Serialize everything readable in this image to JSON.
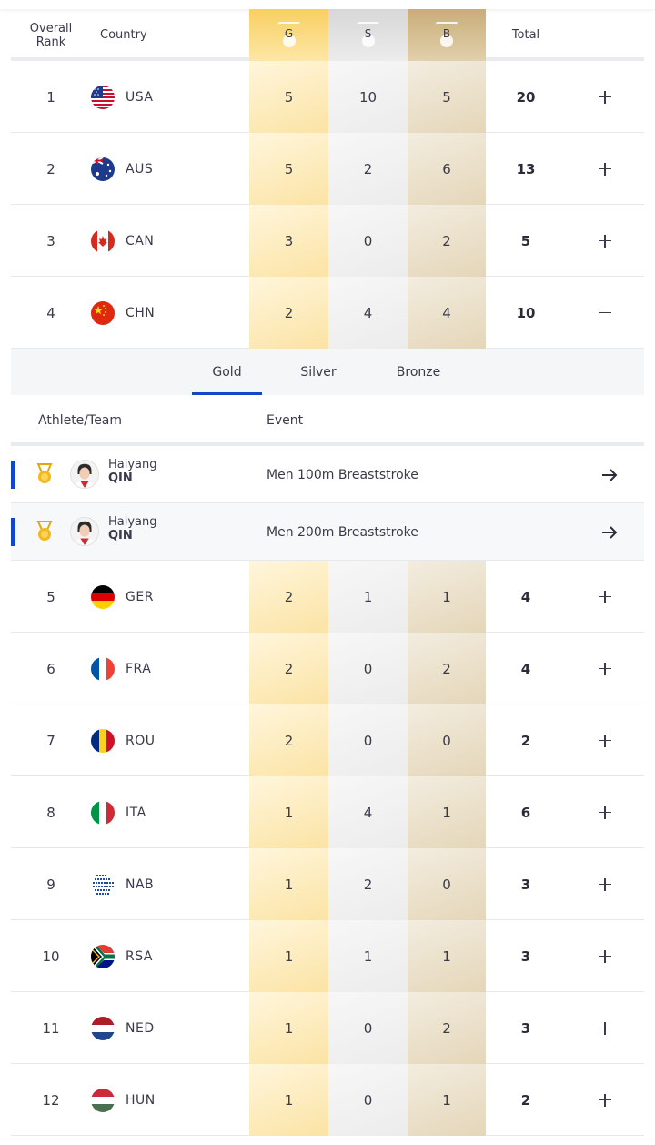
{
  "header": {
    "rank_label_1": "Overall",
    "rank_label_2": "Rank",
    "country_label": "Country",
    "gold_label": "G",
    "silver_label": "S",
    "bronze_label": "B",
    "total_label": "Total"
  },
  "rows_top": [
    {
      "rank": "1",
      "code": "USA",
      "flag": "usa",
      "gold": "5",
      "silver": "10",
      "bronze": "5",
      "total": "20",
      "expanded": false
    },
    {
      "rank": "2",
      "code": "AUS",
      "flag": "aus",
      "gold": "5",
      "silver": "2",
      "bronze": "6",
      "total": "13",
      "expanded": false
    },
    {
      "rank": "3",
      "code": "CAN",
      "flag": "can",
      "gold": "3",
      "silver": "0",
      "bronze": "2",
      "total": "5",
      "expanded": false
    },
    {
      "rank": "4",
      "code": "CHN",
      "flag": "chn",
      "gold": "2",
      "silver": "4",
      "bronze": "4",
      "total": "10",
      "expanded": true
    }
  ],
  "expanded_panel": {
    "tabs": [
      "Gold",
      "Silver",
      "Bronze"
    ],
    "active_tab": "Gold",
    "athlete_header": "Athlete/Team",
    "event_header": "Event",
    "athletes": [
      {
        "first": "Haiyang",
        "last": "QIN",
        "event": "Men 100m Breaststroke",
        "medal_icon": "gold-medal-icon"
      },
      {
        "first": "Haiyang",
        "last": "QIN",
        "event": "Men 200m Breaststroke",
        "medal_icon": "gold-medal-icon"
      }
    ]
  },
  "rows_bottom": [
    {
      "rank": "5",
      "code": "GER",
      "flag": "ger",
      "gold": "2",
      "silver": "1",
      "bronze": "1",
      "total": "4"
    },
    {
      "rank": "6",
      "code": "FRA",
      "flag": "fra",
      "gold": "2",
      "silver": "0",
      "bronze": "2",
      "total": "4"
    },
    {
      "rank": "7",
      "code": "ROU",
      "flag": "rou",
      "gold": "2",
      "silver": "0",
      "bronze": "0",
      "total": "2"
    },
    {
      "rank": "8",
      "code": "ITA",
      "flag": "ita",
      "gold": "1",
      "silver": "4",
      "bronze": "1",
      "total": "6"
    },
    {
      "rank": "9",
      "code": "NAB",
      "flag": "nab",
      "gold": "1",
      "silver": "2",
      "bronze": "0",
      "total": "3"
    },
    {
      "rank": "10",
      "code": "RSA",
      "flag": "rsa",
      "gold": "1",
      "silver": "1",
      "bronze": "1",
      "total": "3"
    },
    {
      "rank": "11",
      "code": "NED",
      "flag": "ned",
      "gold": "1",
      "silver": "0",
      "bronze": "2",
      "total": "3"
    },
    {
      "rank": "12",
      "code": "HUN",
      "flag": "hun",
      "gold": "1",
      "silver": "0",
      "bronze": "1",
      "total": "2"
    }
  ],
  "colors": {
    "accent": "#1446c8",
    "gold": "#f8cf62",
    "silver": "#d7d7d7",
    "bronze": "#c9ad79"
  }
}
